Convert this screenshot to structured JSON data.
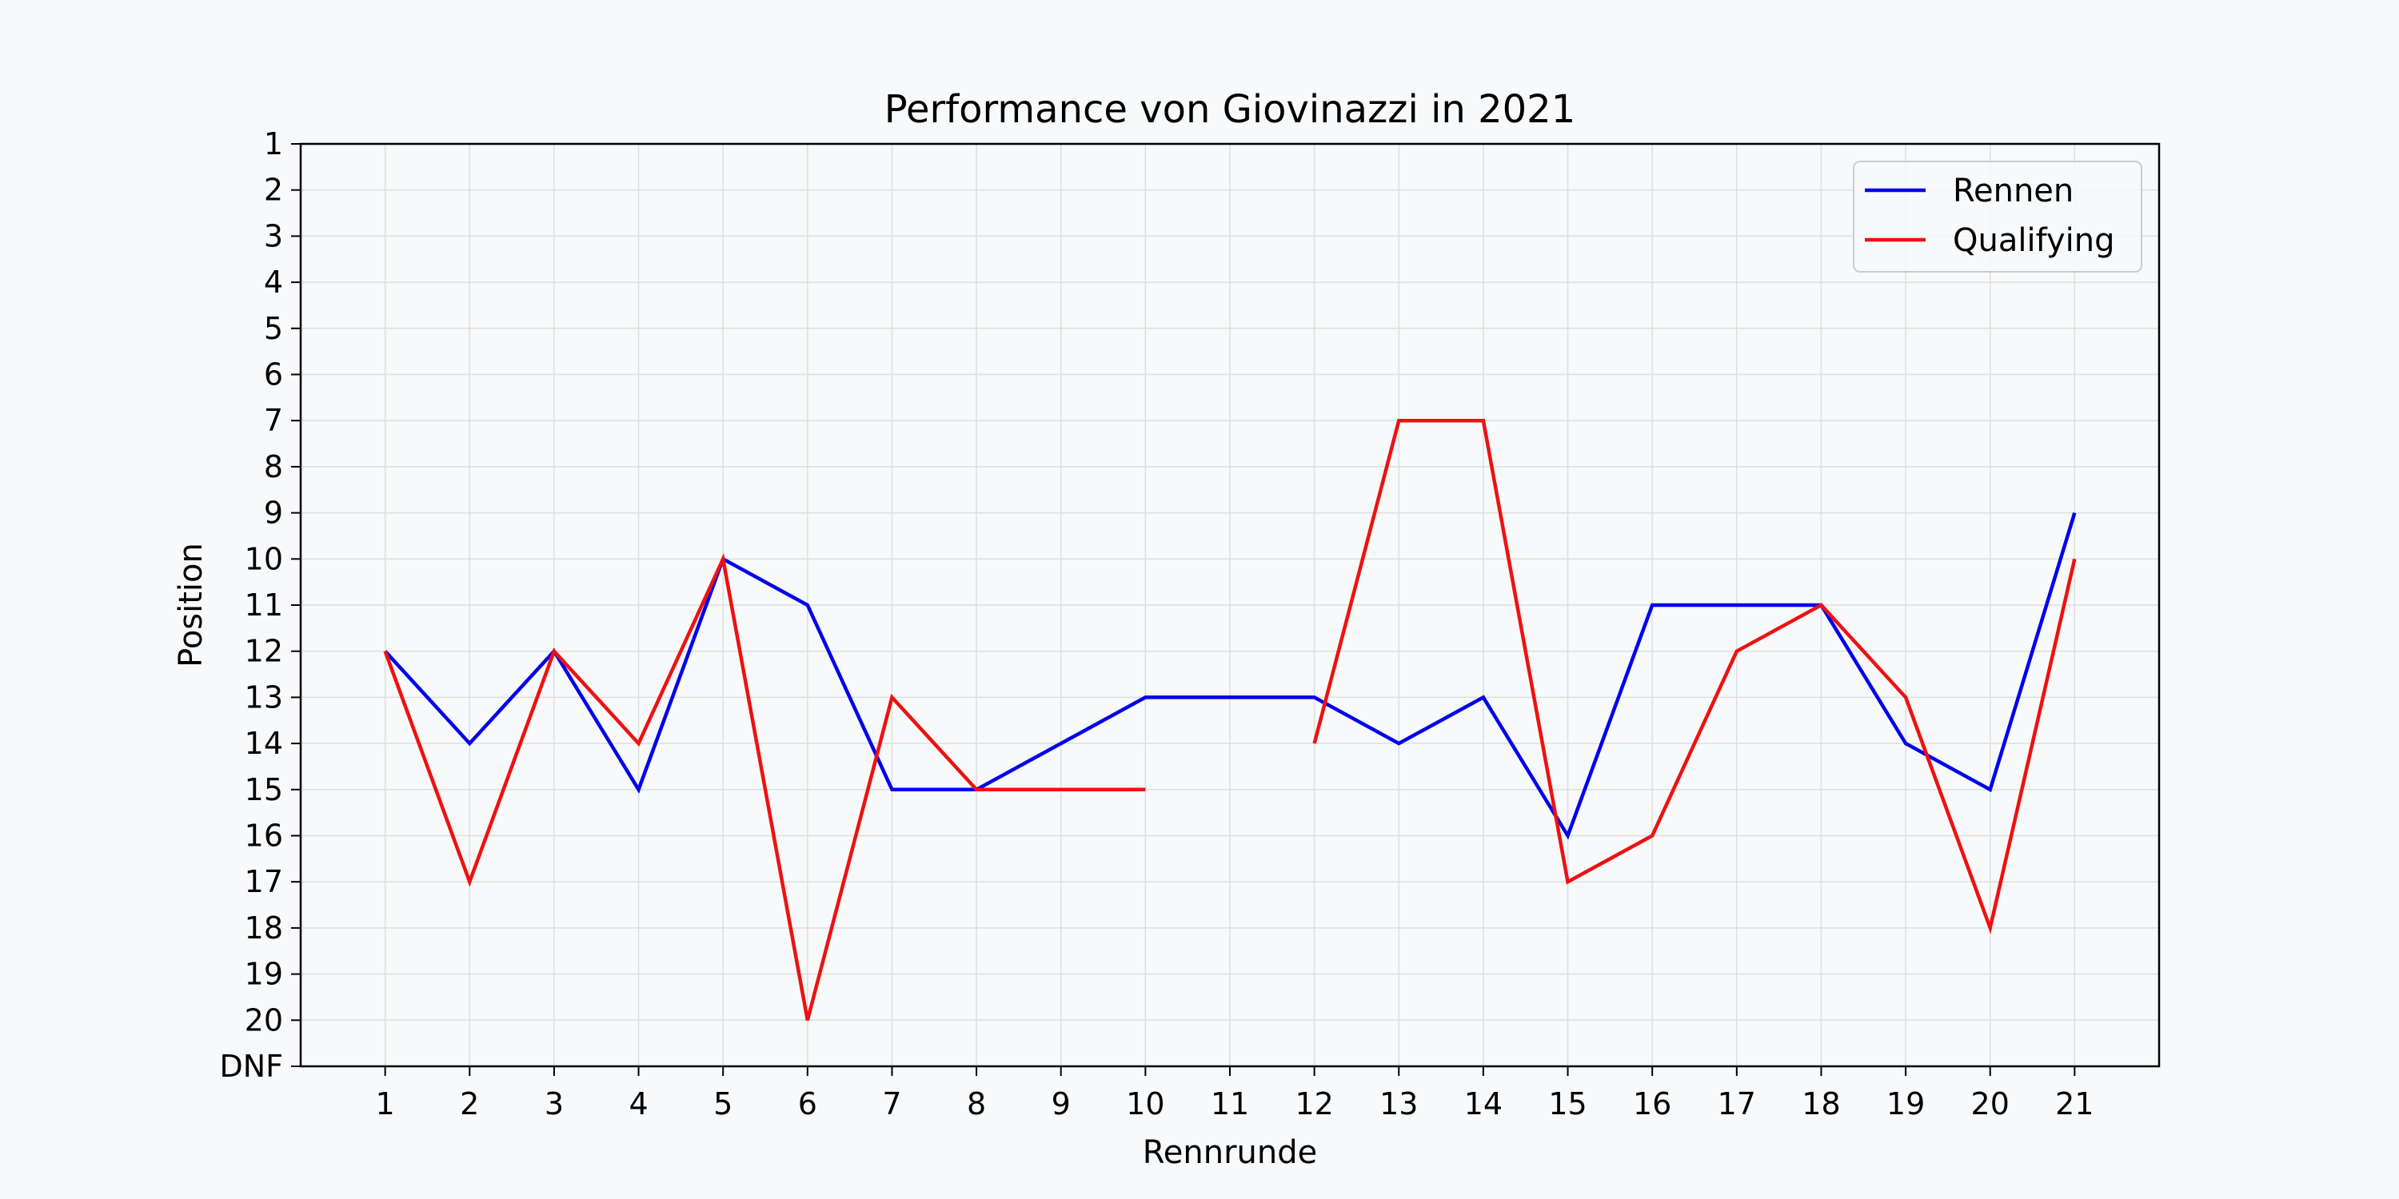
{
  "chart_data": {
    "type": "line",
    "title": "Performance von Giovinazzi in 2021",
    "xlabel": "Rennrunde",
    "ylabel": "Position",
    "x": [
      1,
      2,
      3,
      4,
      5,
      6,
      7,
      8,
      9,
      10,
      11,
      12,
      13,
      14,
      15,
      16,
      17,
      18,
      19,
      20,
      21
    ],
    "x_tick_labels": [
      "1",
      "2",
      "3",
      "4",
      "5",
      "6",
      "7",
      "8",
      "9",
      "10",
      "11",
      "12",
      "13",
      "14",
      "15",
      "16",
      "17",
      "18",
      "19",
      "20",
      "21"
    ],
    "y_tick_labels": [
      "1",
      "2",
      "3",
      "4",
      "5",
      "6",
      "7",
      "8",
      "9",
      "10",
      "11",
      "12",
      "13",
      "14",
      "15",
      "16",
      "17",
      "18",
      "19",
      "20",
      "DNF"
    ],
    "ylim": [
      1,
      21
    ],
    "y_inverted": true,
    "grid": true,
    "legend_position": "top-right",
    "series": [
      {
        "name": "Rennen",
        "color": "#0000ee",
        "values": [
          12,
          14,
          12,
          15,
          10,
          11,
          15,
          15,
          14,
          13,
          13,
          13,
          14,
          13,
          16,
          11,
          11,
          11,
          14,
          15,
          9
        ]
      },
      {
        "name": "Qualifying",
        "color": "#ee1111",
        "values": [
          12,
          17,
          12,
          14,
          10,
          20,
          13,
          15,
          15,
          15,
          null,
          14,
          7,
          7,
          17,
          16,
          12,
          11,
          13,
          18,
          10
        ]
      }
    ]
  }
}
